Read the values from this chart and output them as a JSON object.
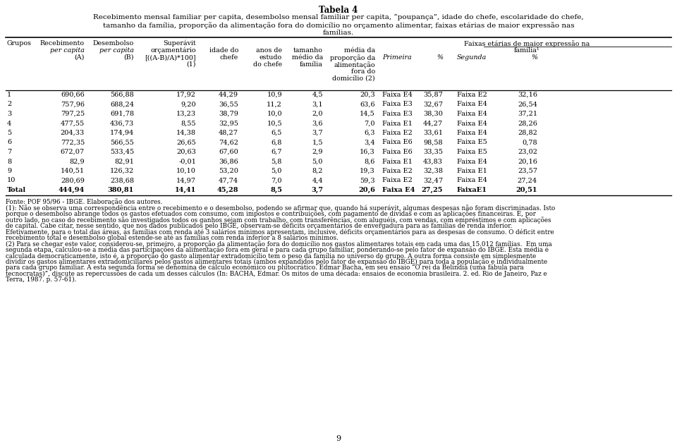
{
  "title": "Tabela 4",
  "subtitle_lines": [
    "Recebimento mensal familiar per capita, desembolso mensal familiar per capita, “poupança”, idade do chefe, escolaridade do chefe,",
    "tamanho da família, proporção da alimentação fora do domicílio no orçamento alimentar, faixas etárias de maior expressão nas",
    "famílias."
  ],
  "rows": [
    [
      "1",
      "690,66",
      "566,88",
      "17,92",
      "44,29",
      "10,9",
      "4,5",
      "20,3",
      "Faixa E4",
      "35,87",
      "Faixa E2",
      "32,16"
    ],
    [
      "2",
      "757,96",
      "688,24",
      "9,20",
      "36,55",
      "11,2",
      "3,1",
      "63,6",
      "Faixa E3",
      "32,67",
      "Faixa E4",
      "26,54"
    ],
    [
      "3",
      "797,25",
      "691,78",
      "13,23",
      "38,79",
      "10,0",
      "2,0",
      "14,5",
      "Faixa E3",
      "38,30",
      "Faixa E4",
      "37,21"
    ],
    [
      "4",
      "477,55",
      "436,73",
      "8,55",
      "32,95",
      "10,5",
      "3,6",
      "7,0",
      "Faixa E1",
      "44,27",
      "Faixa E4",
      "28,26"
    ],
    [
      "5",
      "204,33",
      "174,94",
      "14,38",
      "48,27",
      "6,5",
      "3,7",
      "6,3",
      "Faixa E2",
      "33,61",
      "Faixa E4",
      "28,82"
    ],
    [
      "6",
      "772,35",
      "566,55",
      "26,65",
      "74,62",
      "6,8",
      "1,5",
      "3,4",
      "Faixa E6",
      "98,58",
      "Faixa E5",
      "0,78"
    ],
    [
      "7",
      "672,07",
      "533,45",
      "20,63",
      "67,60",
      "6,7",
      "2,9",
      "16,3",
      "Faixa E6",
      "33,35",
      "Faixa E5",
      "23,02"
    ],
    [
      "8",
      "82,9",
      "82,91",
      "-0,01",
      "36,86",
      "5,8",
      "5,0",
      "8,6",
      "Faixa E1",
      "43,83",
      "Faixa E4",
      "20,16"
    ],
    [
      "9",
      "140,51",
      "126,32",
      "10,10",
      "53,20",
      "5,0",
      "8,2",
      "19,3",
      "Faixa E2",
      "32,38",
      "Faixa E1",
      "23,57"
    ],
    [
      "10",
      "280,69",
      "238,68",
      "14,97",
      "47,74",
      "7,0",
      "4,4",
      "59,3",
      "Faixa E2",
      "32,47",
      "Faixa E4",
      "27,24"
    ],
    [
      "Total",
      "444,94",
      "380,81",
      "14,41",
      "45,28",
      "8,5",
      "3,7",
      "20,6",
      "Faixa E4",
      "27,25",
      "FaixaE1",
      "20,51"
    ]
  ],
  "footnote_lines": [
    "Fonte: POF 95/96 - IBGE. Elaboração dos autores.",
    "(1): Não se observa uma correspondência entre o recebimento e o desembolso, podendo se afirmar que, quando há superávit, algumas despesas não foram discriminadas. Isto",
    "porque o desembolso abrange todos os gastos efetuados com consumo, com impostos e contribuições, com pagamento de dívidas e com as aplicações financeiras. E, por",
    "outro lado, no caso do recebimento são investigados todos os ganhos sejam com trabalho, com transferências, com aluguéis, com vendas, com empréstimos e com aplicações",
    "de capital. Cabe citar, nesse sentido, que nos dados publicados pelo IBGE, observam-se déficits orçamentários de envergadura para as famílias de renda inferior.",
    "Efetivamente, para o total das áreas, as famílias com renda até 3 salários mínimos apresentam, inclusive, déficits orçamentários para as despesas de consumo. O déficit entre",
    "recebimento total e desembolso global estende-se até as famílias com renda inferior a 8 salários mínimos.",
    "(2) Para se chegar este valor, considerou-se, primeiro, a proporção da alimentação fora do domicílio nos gastos alimentares totais em cada uma das 15.012 famílias.  Em uma",
    "segunda etapa, calculou-se a média das participações da alimentação fora em geral e para cada grupo familiar, ponderando-se pelo fator de expansão do IBGE. Esta média é",
    "calculada democraticamente, isto é, a proporção do gasto alimentar extradomicílio tem o peso da família no universo do grupo. A outra forma consiste em simplesmente",
    "dividir os gastos alimentares extradomiciliares pelos gastos alimentares totais (ambos expandidos pelo fator de expansão do IBGE) para toda a população e individualmente",
    "para cada grupo familiar. A esta segunda forma se denomina de cálculo econômico ou plutocrático. Edmar Bacha, em seu ensaio “O rei da Belíndia (uma fábula para",
    "tecnocratas)”, discute as repercussões de cada um desses cálculos (In: BACHA, Edmar. Os mitos de uma década: ensaios de economia brasileira. 2. ed. Rio de Janeiro, Paz e",
    "Terra, 1987. p. 57-61)."
  ],
  "page_number": "9"
}
